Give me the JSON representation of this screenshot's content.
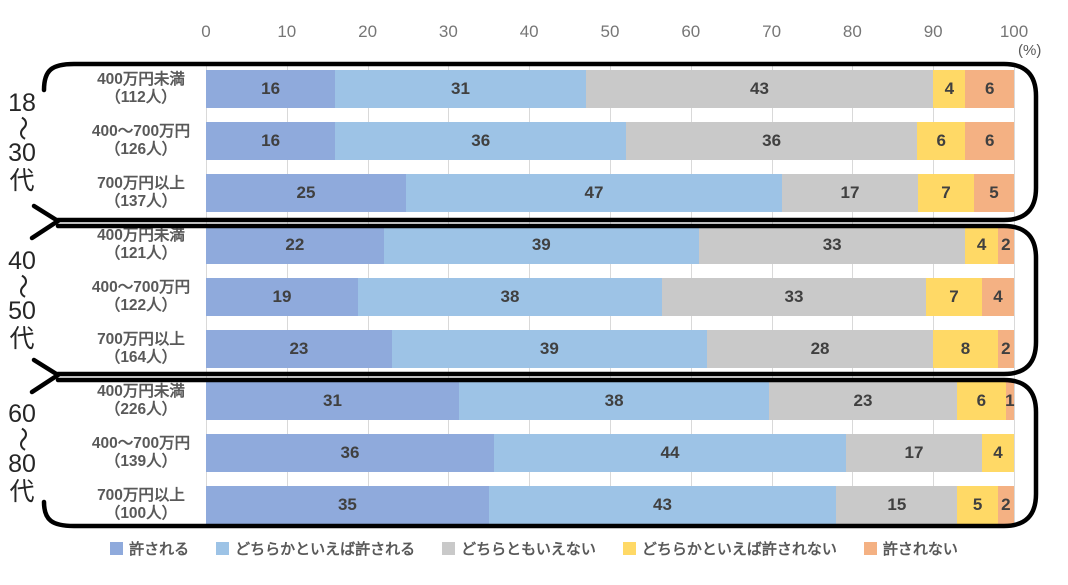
{
  "unit_label": "(%)",
  "chart_data": {
    "type": "bar",
    "orientation": "horizontal",
    "stacked": true,
    "title": "",
    "xlabel": "(%)",
    "xlim": [
      0,
      100
    ],
    "x_ticks": [
      0,
      10,
      20,
      30,
      40,
      50,
      60,
      70,
      80,
      90,
      100
    ],
    "grid": true,
    "legend_position": "bottom",
    "series": [
      {
        "name": "許される",
        "color": "#8faadc"
      },
      {
        "name": "どちらかといえば許される",
        "color": "#9dc3e6"
      },
      {
        "name": "どちらともいえない",
        "color": "#c9c9c9"
      },
      {
        "name": "どちらかといえば許されない",
        "color": "#ffd966"
      },
      {
        "name": "許されない",
        "color": "#f4b183"
      }
    ],
    "groups": [
      {
        "age_label": "18〜30代",
        "age_lines": [
          "18",
          "〜",
          "30",
          "代"
        ],
        "rows": [
          {
            "label": "400万円未満",
            "count": "（112人）",
            "values": [
              16,
              31,
              43,
              4,
              6
            ]
          },
          {
            "label": "400〜700万円",
            "count": "（126人）",
            "values": [
              16,
              36,
              36,
              6,
              6
            ]
          },
          {
            "label": "700万円以上",
            "count": "（137人）",
            "values": [
              25,
              47,
              17,
              7,
              5
            ]
          }
        ]
      },
      {
        "age_label": "40〜50代",
        "age_lines": [
          "40",
          "〜",
          "50",
          "代"
        ],
        "rows": [
          {
            "label": "400万円未満",
            "count": "（121人）",
            "values": [
              22,
              39,
              33,
              4,
              2
            ]
          },
          {
            "label": "400〜700万円",
            "count": "（122人）",
            "values": [
              19,
              38,
              33,
              7,
              4
            ]
          },
          {
            "label": "700万円以上",
            "count": "（164人）",
            "values": [
              23,
              39,
              28,
              8,
              2
            ]
          }
        ]
      },
      {
        "age_label": "60〜80代",
        "age_lines": [
          "60",
          "〜",
          "80",
          "代"
        ],
        "rows": [
          {
            "label": "400万円未満",
            "count": "（226人）",
            "values": [
              31,
              38,
              23,
              6,
              1
            ]
          },
          {
            "label": "400〜700万円",
            "count": "（139人）",
            "values": [
              36,
              44,
              17,
              4,
              0
            ]
          },
          {
            "label": "700万円以上",
            "count": "（100人）",
            "values": [
              35,
              43,
              15,
              5,
              2
            ]
          }
        ]
      }
    ],
    "colors": {
      "gridline": "#d9d9d9",
      "data_label": "#404040",
      "tick_label": "#767676",
      "row_label": "#595959",
      "bracket": "#000000"
    }
  }
}
